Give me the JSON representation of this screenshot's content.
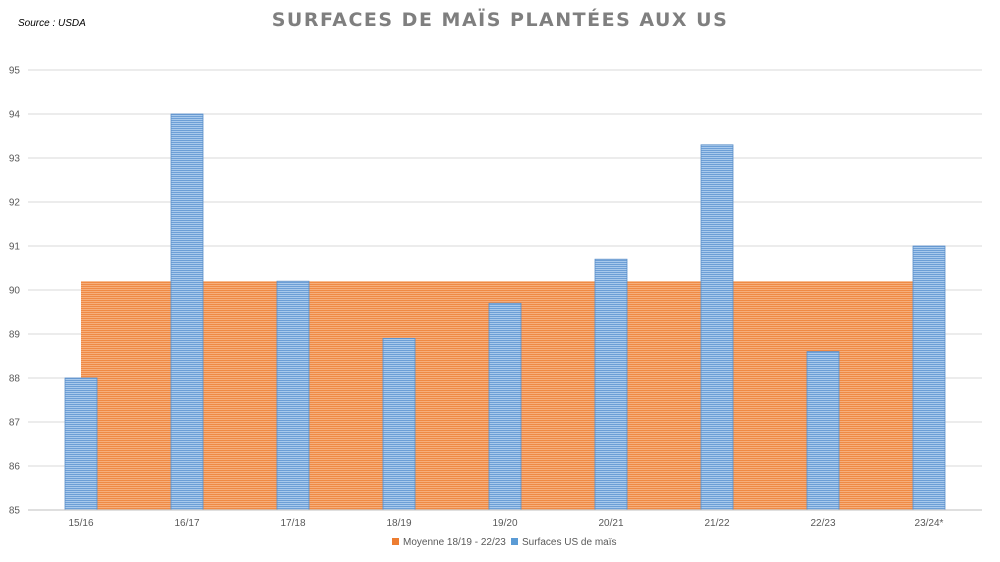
{
  "source_note": "Source : USDA",
  "chart_data": {
    "type": "bar",
    "title": "SURFACES DE MAÏS PLANTÉES AUX US",
    "xlabel": "",
    "ylabel": "",
    "categories": [
      "15/16",
      "16/17",
      "17/18",
      "18/19",
      "19/20",
      "20/21",
      "21/22",
      "22/23",
      "23/24*"
    ],
    "ylim": [
      85,
      95
    ],
    "yticks": [
      "85",
      "86",
      "87",
      "88",
      "89",
      "90",
      "91",
      "92",
      "93",
      "94",
      "95"
    ],
    "grid": true,
    "legend_position": "bottom",
    "series": [
      {
        "name": "Moyenne 18/19 - 22/23",
        "kind": "area",
        "color": "#f4a46a",
        "values": [
          90.2,
          90.2,
          90.2,
          90.2,
          90.2,
          90.2,
          90.2,
          90.2,
          90.2
        ]
      },
      {
        "name": "Surfaces US de maïs",
        "kind": "bar",
        "color": "#8fb8e3",
        "values": [
          88.0,
          94.0,
          90.2,
          88.9,
          89.7,
          90.7,
          93.3,
          88.6,
          91.0
        ]
      }
    ]
  }
}
